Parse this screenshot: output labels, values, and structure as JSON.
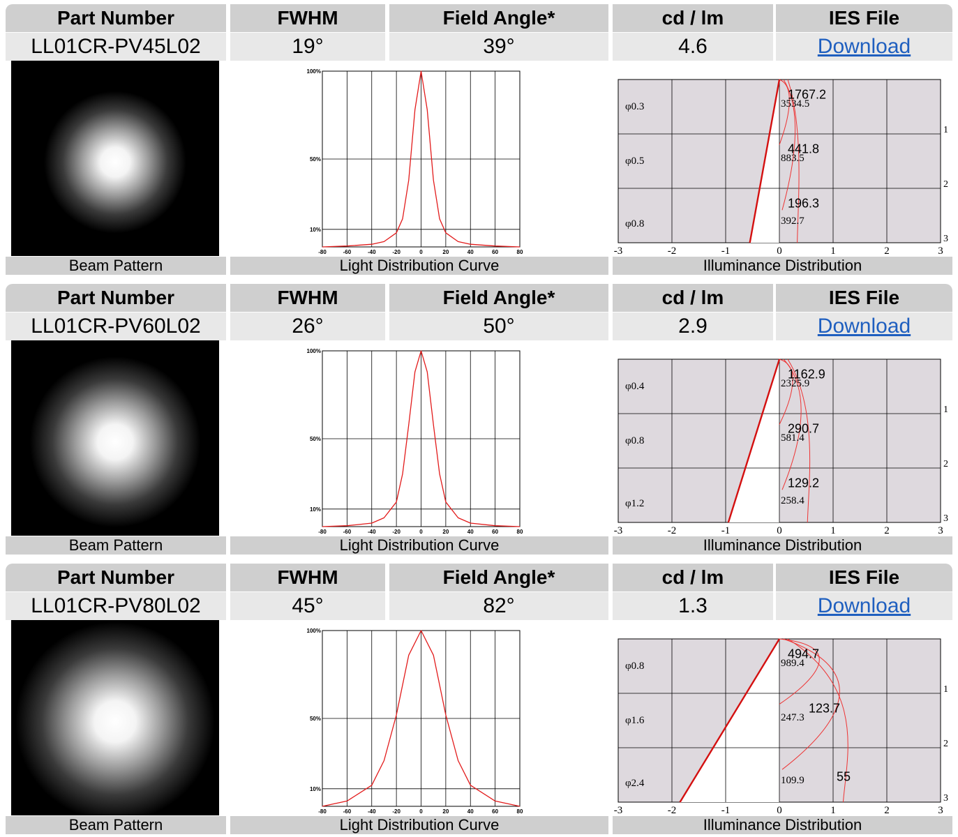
{
  "headers": {
    "part_number": "Part Number",
    "fwhm": "FWHM",
    "field_angle": "Field Angle*",
    "cd_lm": "cd / lm",
    "ies_file": "IES File"
  },
  "captions": {
    "beam": "Beam Pattern",
    "curve": "Light Distribution Curve",
    "illuminance": "Illuminance Distribution"
  },
  "curve_axis": {
    "y_labels": [
      "100%",
      "50%",
      "10%"
    ],
    "x_labels": [
      "-80",
      "-60",
      "-40",
      "-20",
      "0",
      "20",
      "40",
      "60",
      "80"
    ]
  },
  "ill_axis": {
    "x_labels": [
      "-3",
      "-2",
      "-1",
      "0",
      "1",
      "2",
      "3"
    ],
    "y_labels": [
      "1",
      "2",
      "3"
    ]
  },
  "products": [
    {
      "part_number": "LL01CR-PV45L02",
      "fwhm": "19°",
      "field_angle": "39°",
      "cd_lm": "4.6",
      "ies": "Download",
      "phi": [
        "φ0.3",
        "φ0.5",
        "φ0.8"
      ],
      "lux_big": [
        "1767.2",
        "441.8",
        "196.3"
      ],
      "lux_small": [
        "3534.5",
        "883.5",
        "392.7"
      ],
      "chart_data": {
        "type": "line",
        "x": [
          -80,
          -60,
          -40,
          -30,
          -20,
          -15,
          -10,
          -5,
          0,
          5,
          10,
          15,
          20,
          30,
          40,
          60,
          80
        ],
        "series": [
          {
            "values": [
              0,
              0.5,
              1.5,
              3,
              8,
              16,
              38,
              78,
              100,
              78,
              38,
              16,
              8,
              3,
              1.5,
              0.5,
              0
            ]
          }
        ],
        "xlim": [
          -80,
          80
        ],
        "ylim": [
          0,
          100
        ]
      }
    },
    {
      "part_number": "LL01CR-PV60L02",
      "fwhm": "26°",
      "field_angle": "50°",
      "cd_lm": "2.9",
      "ies": "Download",
      "phi": [
        "φ0.4",
        "φ0.8",
        "φ1.2"
      ],
      "lux_big": [
        "1162.9",
        "290.7",
        "129.2"
      ],
      "lux_small": [
        "2325.9",
        "581.4",
        "258.4"
      ],
      "chart_data": {
        "type": "line",
        "x": [
          -80,
          -60,
          -40,
          -30,
          -20,
          -15,
          -10,
          -5,
          0,
          5,
          10,
          15,
          20,
          30,
          40,
          60,
          80
        ],
        "series": [
          {
            "values": [
              0,
              0.5,
              2,
              5,
              14,
              30,
              58,
              88,
              100,
              88,
              58,
              30,
              14,
              5,
              2,
              0.5,
              0
            ]
          }
        ],
        "xlim": [
          -80,
          80
        ],
        "ylim": [
          0,
          100
        ]
      }
    },
    {
      "part_number": "LL01CR-PV80L02",
      "fwhm": "45°",
      "field_angle": "82°",
      "cd_lm": "1.3",
      "ies": "Download",
      "phi": [
        "φ0.8",
        "φ1.6",
        "φ2.4"
      ],
      "lux_big": [
        "494.7",
        "123.7",
        "55"
      ],
      "lux_small": [
        "989.4",
        "247.3",
        "109.9"
      ],
      "chart_data": {
        "type": "line",
        "x": [
          -80,
          -60,
          -40,
          -30,
          -20,
          -10,
          0,
          10,
          20,
          30,
          40,
          60,
          80
        ],
        "series": [
          {
            "values": [
              0,
              3,
              12,
              26,
              52,
              86,
              100,
              86,
              52,
              26,
              12,
              3,
              0
            ]
          }
        ],
        "xlim": [
          -80,
          80
        ],
        "ylim": [
          0,
          100
        ]
      }
    }
  ]
}
